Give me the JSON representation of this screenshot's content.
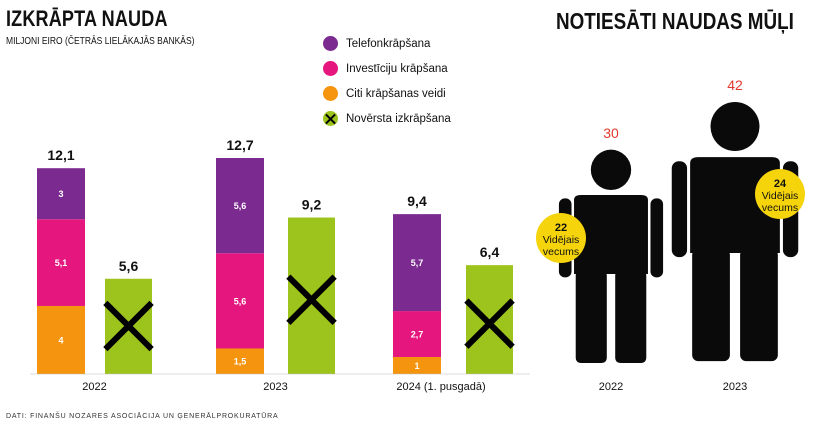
{
  "left": {
    "title": "IZKRĀPTA NAUDA",
    "subtitle": "MILJONI EIRO (ČETRĀS LIELĀKAJĀS BANKĀS)"
  },
  "legend": {
    "items": [
      {
        "label": "Telefonkrāpšana",
        "color": "#7b2a8f",
        "icon": "circle"
      },
      {
        "label": "Investīciju krāpšana",
        "color": "#e5177f",
        "icon": "circle"
      },
      {
        "label": "Citi krāpšanas veidi",
        "color": "#f5940f",
        "icon": "circle"
      },
      {
        "label": "Novērsta izkrāpšana",
        "color": "#9dc41c",
        "icon": "x-circle"
      }
    ]
  },
  "right": {
    "title": "NOTIESĀTI NAUDAS MŪĻI"
  },
  "source": "DATI: FINANŠU NOZARES ASOCIĀCIJA UN ĢENERĀLPROKURATŪRA",
  "chart_data": [
    {
      "type": "bar",
      "title": "IZKRĀPTA NAUDA",
      "subtitle": "MILJONI EIRO (ČETRĀS LIELĀKAJĀS BANKĀS)",
      "categories": [
        "2022",
        "2023",
        "2024 (1. pusgadā)"
      ],
      "series": [
        {
          "name": "Telefonkrāpšana",
          "color": "#7b2a8f",
          "values": [
            3,
            5.6,
            5.7
          ],
          "labels": [
            "3",
            "5,6",
            "5,7"
          ]
        },
        {
          "name": "Investīciju krāpšana",
          "color": "#e5177f",
          "values": [
            5.1,
            5.6,
            2.7
          ],
          "labels": [
            "5,1",
            "5,6",
            "2,7"
          ]
        },
        {
          "name": "Citi krāpšanas veidi",
          "color": "#f5940f",
          "values": [
            4,
            1.5,
            1
          ],
          "labels": [
            "4",
            "1,5",
            "1"
          ]
        },
        {
          "name": "Novērsta izkrāpšana",
          "color": "#9dc41c",
          "values": [
            5.6,
            9.2,
            6.4
          ],
          "labels": [
            "5,6",
            "9,2",
            "6,4"
          ]
        }
      ],
      "totals": [
        12.1,
        12.7,
        9.4
      ],
      "total_labels": [
        "12,1",
        "12,7",
        "9,4"
      ],
      "stacked_series": [
        "Telefonkrāpšana",
        "Investīciju krāpšana",
        "Citi krāpšanas veidi"
      ],
      "ylim": [
        0,
        12.7
      ]
    },
    {
      "type": "pictogram",
      "title": "NOTIESĀTI NAUDAS MŪĻI",
      "categories": [
        "2022",
        "2023"
      ],
      "values": [
        30,
        42
      ],
      "value_color": "#e03a2e",
      "age_label": "Vidējais vecums",
      "ages": [
        22,
        24
      ],
      "badge_color": "#f5d40c"
    }
  ]
}
